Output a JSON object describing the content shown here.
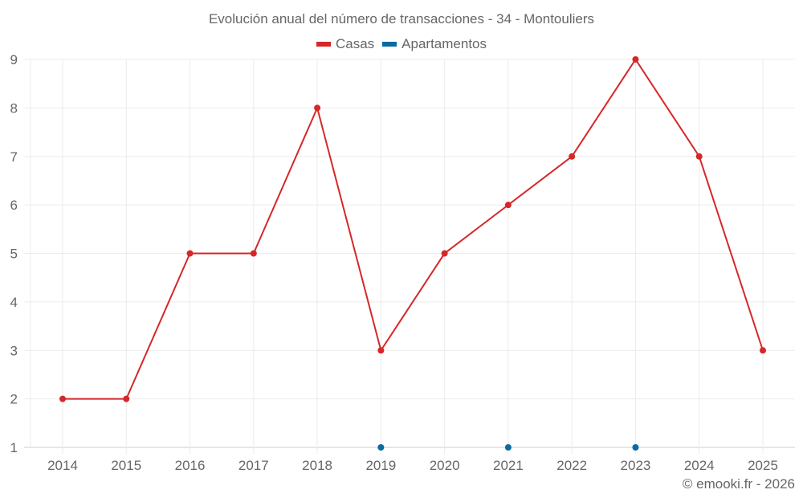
{
  "chart_data": {
    "type": "line",
    "title": "Evolución anual del número de transacciones - 34 - Montouliers",
    "categories": [
      "2014",
      "2015",
      "2016",
      "2017",
      "2018",
      "2019",
      "2020",
      "2021",
      "2022",
      "2023",
      "2024",
      "2025"
    ],
    "series": [
      {
        "name": "Casas",
        "color": "#d62728",
        "values": [
          2,
          2,
          5,
          5,
          8,
          3,
          5,
          6,
          7,
          9,
          7,
          3
        ]
      },
      {
        "name": "Apartamentos",
        "color": "#0b6aa2",
        "values": [
          null,
          null,
          null,
          null,
          null,
          1,
          null,
          1,
          null,
          1,
          null,
          null
        ]
      }
    ],
    "xlabel": "",
    "ylabel": "",
    "ylim": [
      1,
      9
    ],
    "yticks": [
      "1",
      "2",
      "3",
      "4",
      "5",
      "6",
      "7",
      "8",
      "9"
    ],
    "grid": true,
    "legend_position": "top"
  },
  "credit": "© emooki.fr - 2026"
}
